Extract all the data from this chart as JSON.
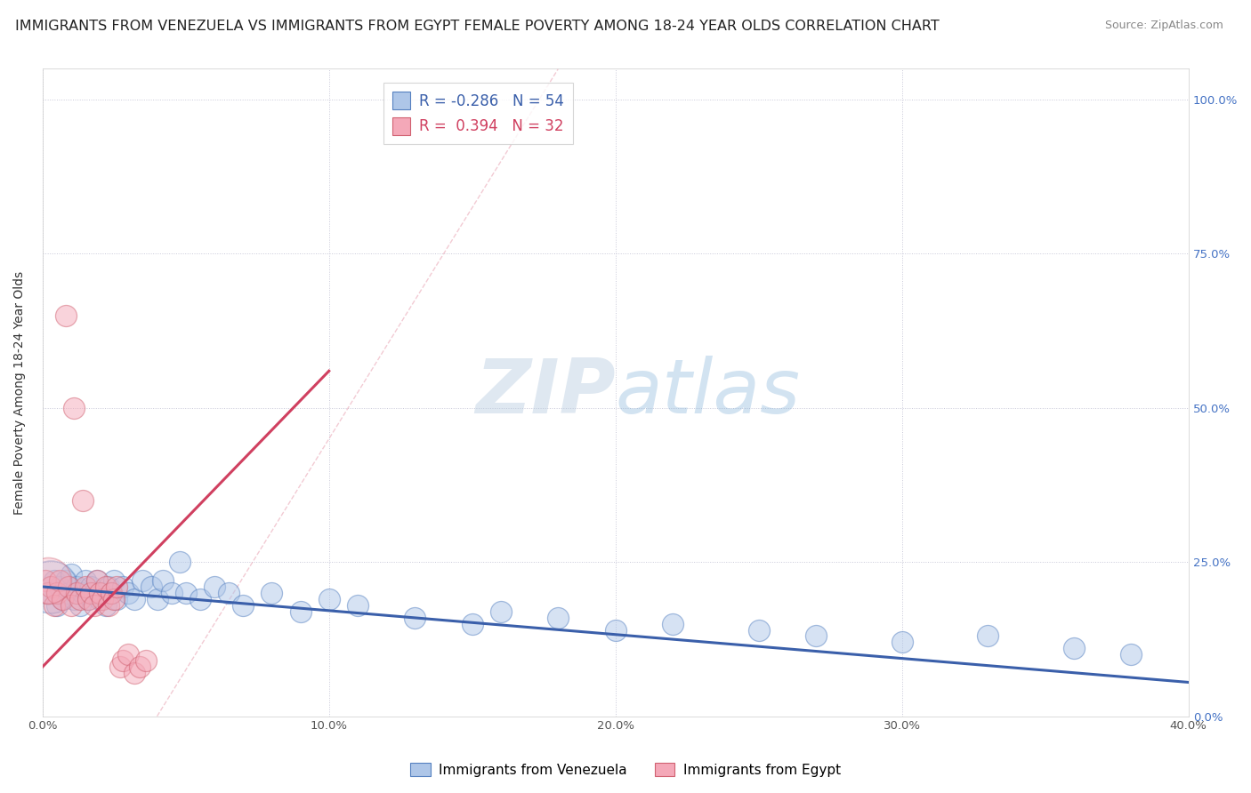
{
  "title": "IMMIGRANTS FROM VENEZUELA VS IMMIGRANTS FROM EGYPT FEMALE POVERTY AMONG 18-24 YEAR OLDS CORRELATION CHART",
  "source": "Source: ZipAtlas.com",
  "ylabel": "Female Poverty Among 18-24 Year Olds",
  "watermark_zip": "ZIP",
  "watermark_atlas": "atlas",
  "legend_blue_r": "-0.286",
  "legend_blue_n": "54",
  "legend_pink_r": "0.394",
  "legend_pink_n": "32",
  "blue_color": "#aec6e8",
  "pink_color": "#f4a8b8",
  "blue_edge_color": "#5580c0",
  "pink_edge_color": "#d06070",
  "blue_line_color": "#3a5faa",
  "pink_line_color": "#d04060",
  "blue_scatter": [
    [
      0.002,
      0.2
    ],
    [
      0.004,
      0.22
    ],
    [
      0.005,
      0.18
    ],
    [
      0.006,
      0.21
    ],
    [
      0.007,
      0.19
    ],
    [
      0.008,
      0.22
    ],
    [
      0.009,
      0.2
    ],
    [
      0.01,
      0.23
    ],
    [
      0.011,
      0.19
    ],
    [
      0.012,
      0.21
    ],
    [
      0.013,
      0.18
    ],
    [
      0.014,
      0.2
    ],
    [
      0.015,
      0.22
    ],
    [
      0.016,
      0.19
    ],
    [
      0.017,
      0.21
    ],
    [
      0.018,
      0.2
    ],
    [
      0.019,
      0.22
    ],
    [
      0.02,
      0.19
    ],
    [
      0.021,
      0.2
    ],
    [
      0.022,
      0.18
    ],
    [
      0.023,
      0.21
    ],
    [
      0.024,
      0.2
    ],
    [
      0.025,
      0.22
    ],
    [
      0.026,
      0.19
    ],
    [
      0.028,
      0.21
    ],
    [
      0.03,
      0.2
    ],
    [
      0.032,
      0.19
    ],
    [
      0.035,
      0.22
    ],
    [
      0.038,
      0.21
    ],
    [
      0.04,
      0.19
    ],
    [
      0.042,
      0.22
    ],
    [
      0.045,
      0.2
    ],
    [
      0.048,
      0.25
    ],
    [
      0.05,
      0.2
    ],
    [
      0.055,
      0.19
    ],
    [
      0.06,
      0.21
    ],
    [
      0.065,
      0.2
    ],
    [
      0.07,
      0.18
    ],
    [
      0.08,
      0.2
    ],
    [
      0.09,
      0.17
    ],
    [
      0.1,
      0.19
    ],
    [
      0.11,
      0.18
    ],
    [
      0.13,
      0.16
    ],
    [
      0.15,
      0.15
    ],
    [
      0.16,
      0.17
    ],
    [
      0.18,
      0.16
    ],
    [
      0.2,
      0.14
    ],
    [
      0.22,
      0.15
    ],
    [
      0.25,
      0.14
    ],
    [
      0.27,
      0.13
    ],
    [
      0.3,
      0.12
    ],
    [
      0.33,
      0.13
    ],
    [
      0.36,
      0.11
    ],
    [
      0.38,
      0.1
    ]
  ],
  "pink_scatter": [
    [
      0.001,
      0.22
    ],
    [
      0.002,
      0.2
    ],
    [
      0.003,
      0.21
    ],
    [
      0.004,
      0.18
    ],
    [
      0.005,
      0.2
    ],
    [
      0.006,
      0.22
    ],
    [
      0.007,
      0.19
    ],
    [
      0.008,
      0.65
    ],
    [
      0.009,
      0.21
    ],
    [
      0.01,
      0.18
    ],
    [
      0.011,
      0.5
    ],
    [
      0.012,
      0.2
    ],
    [
      0.013,
      0.19
    ],
    [
      0.014,
      0.35
    ],
    [
      0.015,
      0.21
    ],
    [
      0.016,
      0.19
    ],
    [
      0.017,
      0.2
    ],
    [
      0.018,
      0.18
    ],
    [
      0.019,
      0.22
    ],
    [
      0.02,
      0.2
    ],
    [
      0.021,
      0.19
    ],
    [
      0.022,
      0.21
    ],
    [
      0.023,
      0.18
    ],
    [
      0.024,
      0.2
    ],
    [
      0.025,
      0.19
    ],
    [
      0.026,
      0.21
    ],
    [
      0.027,
      0.08
    ],
    [
      0.028,
      0.09
    ],
    [
      0.03,
      0.1
    ],
    [
      0.032,
      0.07
    ],
    [
      0.034,
      0.08
    ],
    [
      0.036,
      0.09
    ]
  ],
  "xlim": [
    0.0,
    0.4
  ],
  "ylim": [
    0.0,
    1.05
  ],
  "xticks": [
    0.0,
    0.1,
    0.2,
    0.3,
    0.4
  ],
  "xtick_labels": [
    "0.0%",
    "10.0%",
    "20.0%",
    "30.0%",
    "40.0%"
  ],
  "yticks": [
    0.0,
    0.25,
    0.5,
    0.75,
    1.0
  ],
  "ytick_labels_right": [
    "0.0%",
    "25.0%",
    "50.0%",
    "75.0%",
    "100.0%"
  ],
  "background_color": "#ffffff",
  "grid_color": "#c8c8d8",
  "title_fontsize": 11.5,
  "blue_trend_x0": 0.0,
  "blue_trend_y0": 0.21,
  "blue_trend_x1": 0.4,
  "blue_trend_y1": 0.055,
  "pink_trend_x0": 0.0,
  "pink_trend_y0": 0.08,
  "pink_trend_x1": 0.1,
  "pink_trend_y1": 0.56
}
